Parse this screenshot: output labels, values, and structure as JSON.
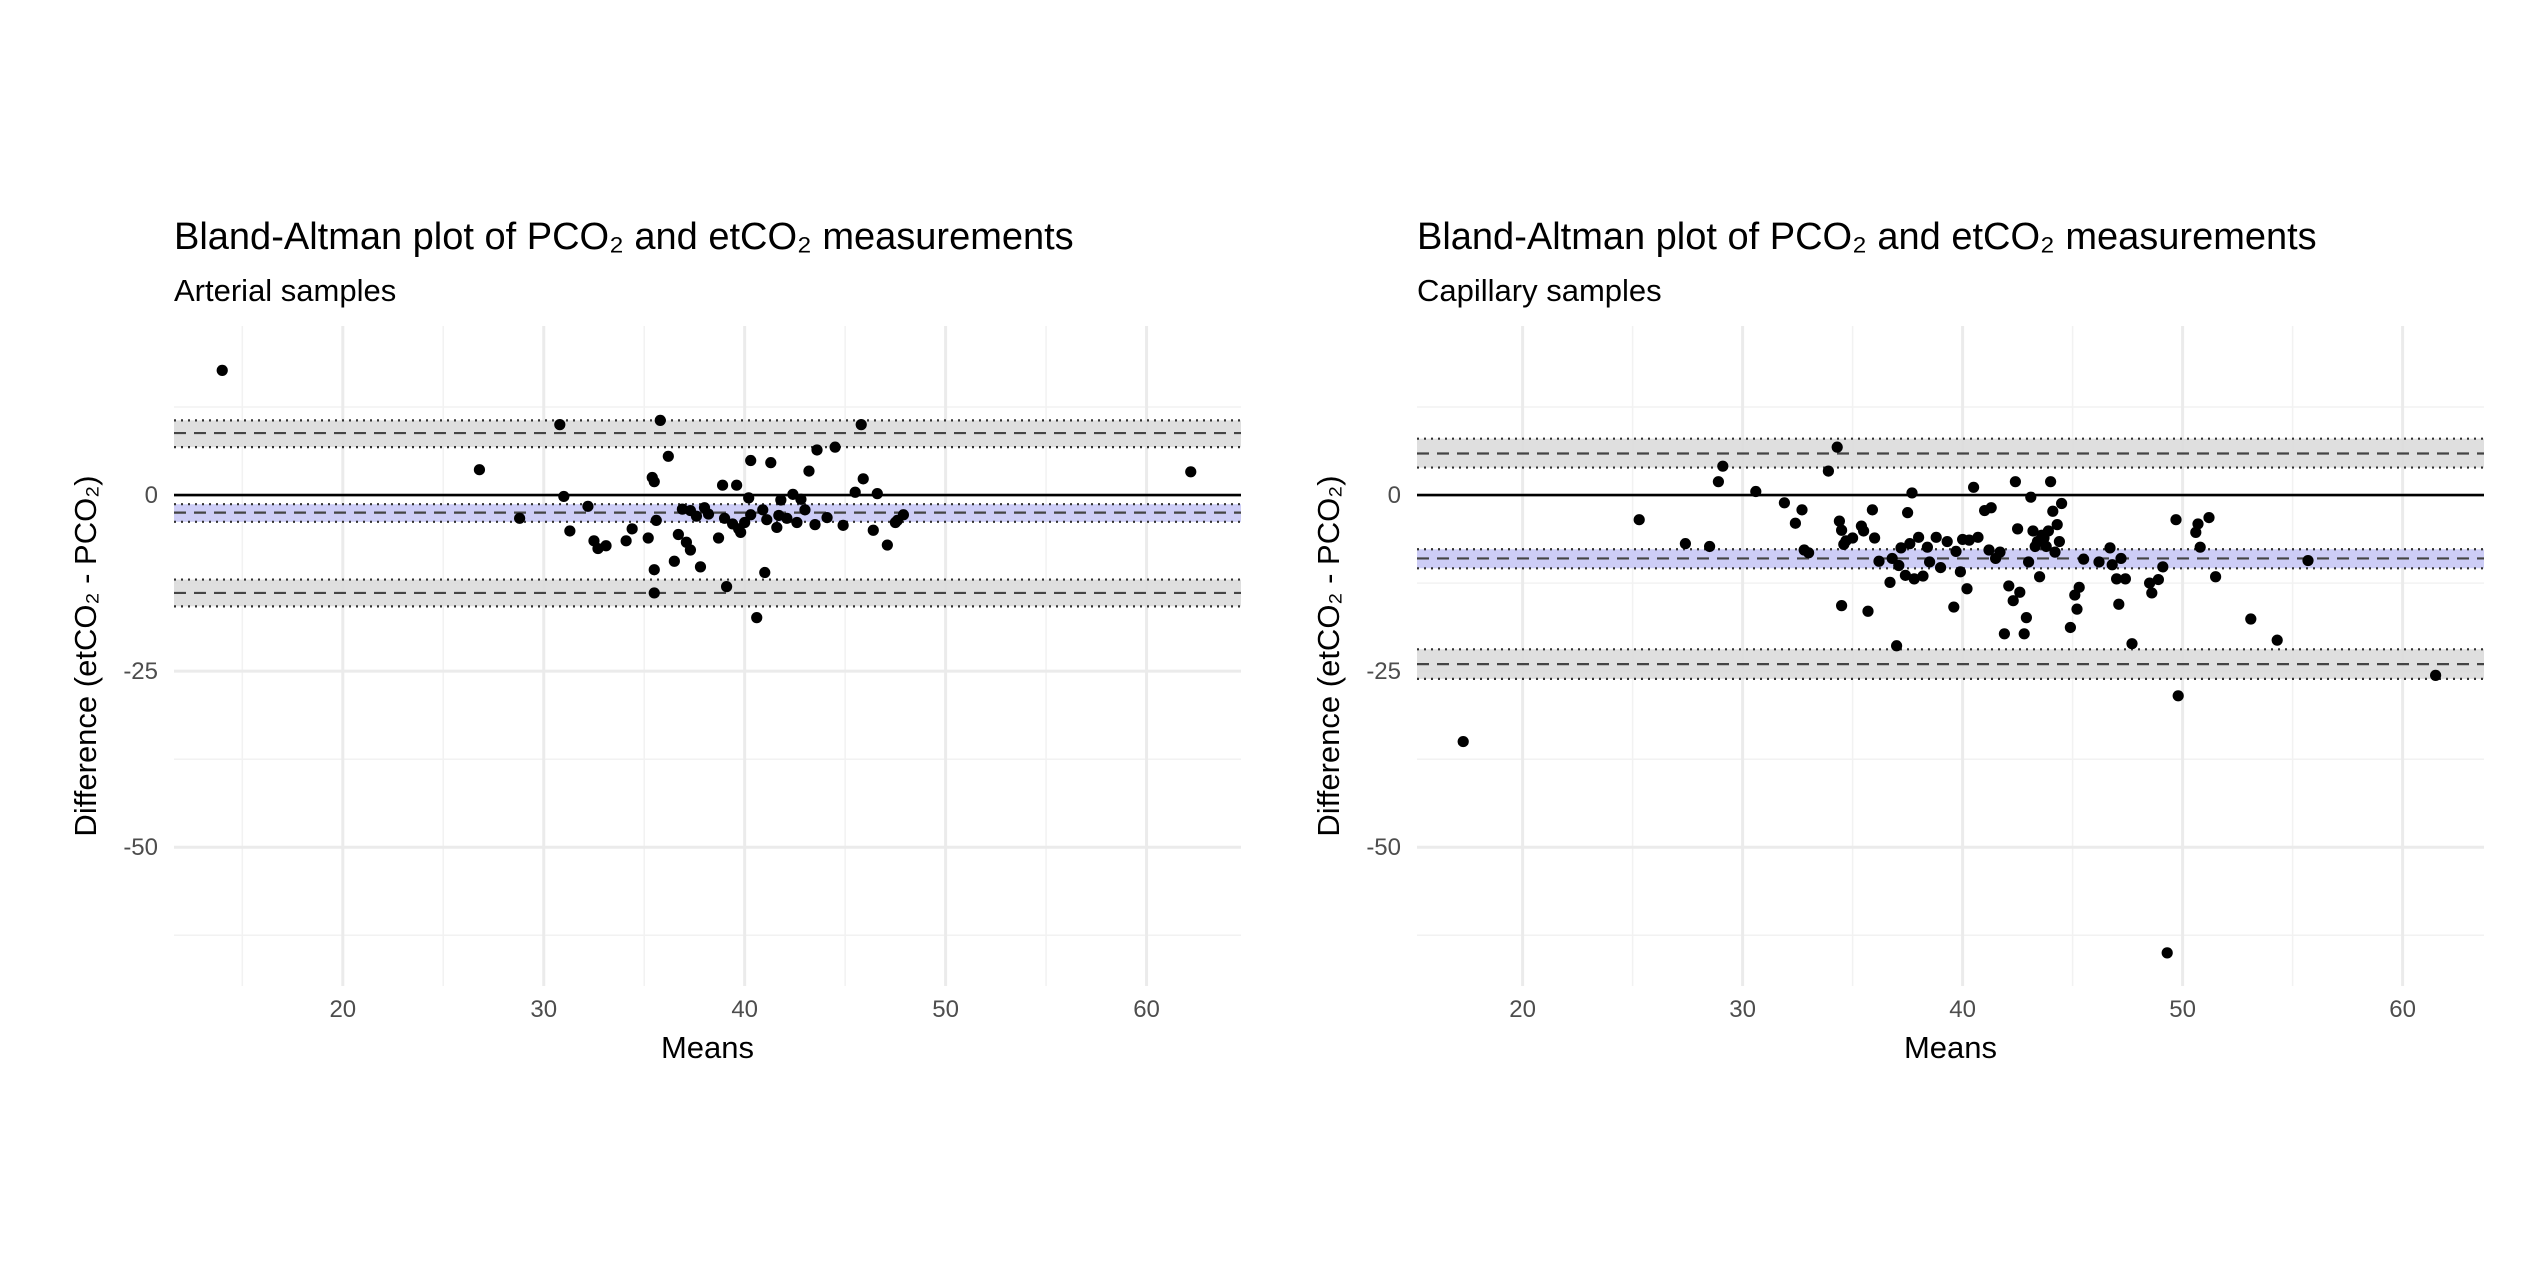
{
  "chart_data": [
    {
      "type": "scatter",
      "title": "Bland-Altman plot of PCO₂ and etCO₂ measurements",
      "subtitle": "Arterial samples",
      "xlabel": "Means",
      "ylabel": "Difference (etCO₂ - PCO₂)",
      "xlim": [
        11.6,
        64.7
      ],
      "ylim": [
        -69.7,
        24.0
      ],
      "x_ticks": [
        20,
        30,
        40,
        50,
        60
      ],
      "x_tick_labels": [
        "20",
        "30",
        "40",
        "50",
        "60"
      ],
      "y_ticks": [
        0,
        -25,
        -50
      ],
      "y_tick_labels": [
        "0",
        "-25",
        "-50"
      ],
      "grid": true,
      "reference_lines": {
        "zero": 0,
        "bias": -2.5,
        "bias_ci": [
          -3.8,
          -1.3
        ],
        "upper_loa": 8.8,
        "upper_loa_ci": [
          6.8,
          10.6
        ],
        "lower_loa": -13.9,
        "lower_loa_ci": [
          -15.8,
          -12.0
        ]
      },
      "colors": {
        "points": "#000000",
        "bias_band": "#c8c8f5",
        "loa_band": "#dcdcdc"
      },
      "points": [
        {
          "x": 14.0,
          "y": 17.7
        },
        {
          "x": 26.8,
          "y": 3.6
        },
        {
          "x": 28.8,
          "y": -3.3
        },
        {
          "x": 30.8,
          "y": 10.0
        },
        {
          "x": 31.0,
          "y": -0.2
        },
        {
          "x": 31.3,
          "y": -5.1
        },
        {
          "x": 32.2,
          "y": -1.6
        },
        {
          "x": 32.5,
          "y": -6.5
        },
        {
          "x": 32.7,
          "y": -7.6
        },
        {
          "x": 33.1,
          "y": -7.2
        },
        {
          "x": 34.1,
          "y": -6.5
        },
        {
          "x": 34.4,
          "y": -4.8
        },
        {
          "x": 35.2,
          "y": -6.1
        },
        {
          "x": 35.4,
          "y": 2.5
        },
        {
          "x": 35.5,
          "y": 1.9
        },
        {
          "x": 35.5,
          "y": -10.6
        },
        {
          "x": 35.5,
          "y": -13.9
        },
        {
          "x": 35.6,
          "y": -3.6
        },
        {
          "x": 35.8,
          "y": 10.6
        },
        {
          "x": 36.2,
          "y": 5.5
        },
        {
          "x": 36.5,
          "y": -9.4
        },
        {
          "x": 36.7,
          "y": -5.6
        },
        {
          "x": 36.9,
          "y": -2.0
        },
        {
          "x": 37.1,
          "y": -6.7
        },
        {
          "x": 37.3,
          "y": -7.8
        },
        {
          "x": 37.3,
          "y": -2.2
        },
        {
          "x": 37.6,
          "y": -3.0
        },
        {
          "x": 37.8,
          "y": -10.2
        },
        {
          "x": 38.0,
          "y": -1.8
        },
        {
          "x": 38.2,
          "y": -2.7
        },
        {
          "x": 38.7,
          "y": -6.1
        },
        {
          "x": 38.9,
          "y": 1.4
        },
        {
          "x": 39.0,
          "y": -3.3
        },
        {
          "x": 39.1,
          "y": -13.0
        },
        {
          "x": 39.4,
          "y": -4.1
        },
        {
          "x": 39.6,
          "y": 1.4
        },
        {
          "x": 39.7,
          "y": -4.8
        },
        {
          "x": 39.8,
          "y": -5.3
        },
        {
          "x": 40.0,
          "y": -3.9
        },
        {
          "x": 40.2,
          "y": -0.4
        },
        {
          "x": 40.3,
          "y": -2.8
        },
        {
          "x": 40.3,
          "y": 4.9
        },
        {
          "x": 40.6,
          "y": -17.4
        },
        {
          "x": 40.9,
          "y": -2.1
        },
        {
          "x": 41.1,
          "y": -3.5
        },
        {
          "x": 41.0,
          "y": -11.0
        },
        {
          "x": 41.3,
          "y": 4.6
        },
        {
          "x": 41.6,
          "y": -4.6
        },
        {
          "x": 41.7,
          "y": -2.9
        },
        {
          "x": 41.8,
          "y": -0.7
        },
        {
          "x": 42.1,
          "y": -3.3
        },
        {
          "x": 42.4,
          "y": 0.1
        },
        {
          "x": 42.6,
          "y": -3.9
        },
        {
          "x": 42.8,
          "y": -0.6
        },
        {
          "x": 43.0,
          "y": -2.1
        },
        {
          "x": 43.2,
          "y": 3.4
        },
        {
          "x": 43.5,
          "y": -4.2
        },
        {
          "x": 43.6,
          "y": 6.4
        },
        {
          "x": 44.1,
          "y": -3.2
        },
        {
          "x": 44.5,
          "y": 6.8
        },
        {
          "x": 44.9,
          "y": -4.3
        },
        {
          "x": 45.5,
          "y": 0.4
        },
        {
          "x": 45.8,
          "y": 10.0
        },
        {
          "x": 45.9,
          "y": 2.3
        },
        {
          "x": 46.4,
          "y": -5.0
        },
        {
          "x": 46.6,
          "y": 0.2
        },
        {
          "x": 47.1,
          "y": -7.1
        },
        {
          "x": 47.5,
          "y": -3.9
        },
        {
          "x": 47.6,
          "y": -3.6
        },
        {
          "x": 47.9,
          "y": -2.8
        },
        {
          "x": 62.2,
          "y": 3.3
        }
      ]
    },
    {
      "type": "scatter",
      "title": "Bland-Altman plot of PCO₂ and etCO₂ measurements",
      "subtitle": "Capillary samples",
      "xlabel": "Means",
      "ylabel": "Difference (etCO₂ - PCO₂)",
      "xlim": [
        15.2,
        63.7
      ],
      "ylim": [
        -69.7,
        24.0
      ],
      "x_ticks": [
        20,
        30,
        40,
        50,
        60
      ],
      "x_tick_labels": [
        "20",
        "30",
        "40",
        "50",
        "60"
      ],
      "y_ticks": [
        0,
        -25,
        -50
      ],
      "y_tick_labels": [
        "0",
        "-25",
        "-50"
      ],
      "grid": true,
      "reference_lines": {
        "zero": 0,
        "bias": -9.0,
        "bias_ci": [
          -10.4,
          -7.7
        ],
        "upper_loa": 5.9,
        "upper_loa_ci": [
          3.9,
          8.0
        ],
        "lower_loa": -24.0,
        "lower_loa_ci": [
          -26.1,
          -21.9
        ]
      },
      "colors": {
        "points": "#000000",
        "bias_band": "#c8c8f5",
        "loa_band": "#dcdcdc"
      },
      "points": [
        {
          "x": 17.3,
          "y": -35.0
        },
        {
          "x": 25.3,
          "y": -3.5
        },
        {
          "x": 27.4,
          "y": -6.9
        },
        {
          "x": 28.5,
          "y": -7.3
        },
        {
          "x": 28.9,
          "y": 1.9
        },
        {
          "x": 29.1,
          "y": 4.1
        },
        {
          "x": 30.6,
          "y": 0.5
        },
        {
          "x": 31.9,
          "y": -1.1
        },
        {
          "x": 32.4,
          "y": -4.0
        },
        {
          "x": 32.7,
          "y": -2.1
        },
        {
          "x": 32.8,
          "y": -7.8
        },
        {
          "x": 33.0,
          "y": -8.2
        },
        {
          "x": 33.9,
          "y": 3.4
        },
        {
          "x": 34.3,
          "y": 6.8
        },
        {
          "x": 34.4,
          "y": -3.7
        },
        {
          "x": 34.5,
          "y": -5.0
        },
        {
          "x": 34.5,
          "y": -15.7
        },
        {
          "x": 34.6,
          "y": -7.0
        },
        {
          "x": 34.7,
          "y": -6.5
        },
        {
          "x": 35.0,
          "y": -6.1
        },
        {
          "x": 35.4,
          "y": -4.4
        },
        {
          "x": 35.5,
          "y": -5.1
        },
        {
          "x": 35.7,
          "y": -16.5
        },
        {
          "x": 35.9,
          "y": -2.1
        },
        {
          "x": 36.0,
          "y": -6.1
        },
        {
          "x": 36.2,
          "y": -9.4
        },
        {
          "x": 36.7,
          "y": -12.4
        },
        {
          "x": 36.8,
          "y": -9.0
        },
        {
          "x": 37.0,
          "y": -21.4
        },
        {
          "x": 37.1,
          "y": -10.0
        },
        {
          "x": 37.2,
          "y": -7.5
        },
        {
          "x": 37.4,
          "y": -11.4
        },
        {
          "x": 37.5,
          "y": -2.5
        },
        {
          "x": 37.6,
          "y": -6.9
        },
        {
          "x": 37.7,
          "y": 0.3
        },
        {
          "x": 37.8,
          "y": -11.9
        },
        {
          "x": 38.0,
          "y": -6.0
        },
        {
          "x": 38.2,
          "y": -11.5
        },
        {
          "x": 38.4,
          "y": -7.4
        },
        {
          "x": 38.5,
          "y": -9.5
        },
        {
          "x": 38.8,
          "y": -6.0
        },
        {
          "x": 39.0,
          "y": -10.3
        },
        {
          "x": 39.3,
          "y": -6.6
        },
        {
          "x": 39.6,
          "y": -15.9
        },
        {
          "x": 39.7,
          "y": -8.0
        },
        {
          "x": 39.9,
          "y": -10.9
        },
        {
          "x": 40.0,
          "y": -6.3
        },
        {
          "x": 40.2,
          "y": -13.3
        },
        {
          "x": 40.3,
          "y": -6.4
        },
        {
          "x": 40.5,
          "y": 1.1
        },
        {
          "x": 40.7,
          "y": -6.0
        },
        {
          "x": 41.0,
          "y": -2.2
        },
        {
          "x": 41.2,
          "y": -7.8
        },
        {
          "x": 41.3,
          "y": -1.8
        },
        {
          "x": 41.5,
          "y": -9.0
        },
        {
          "x": 41.7,
          "y": -8.1
        },
        {
          "x": 41.9,
          "y": -19.7
        },
        {
          "x": 42.1,
          "y": -12.9
        },
        {
          "x": 42.3,
          "y": -15.0
        },
        {
          "x": 42.4,
          "y": 1.9
        },
        {
          "x": 42.5,
          "y": -4.8
        },
        {
          "x": 42.6,
          "y": -13.8
        },
        {
          "x": 42.8,
          "y": -19.7
        },
        {
          "x": 42.9,
          "y": -17.4
        },
        {
          "x": 43.0,
          "y": -9.5
        },
        {
          "x": 43.1,
          "y": -0.3
        },
        {
          "x": 43.2,
          "y": -5.1
        },
        {
          "x": 43.3,
          "y": -7.3
        },
        {
          "x": 43.4,
          "y": -6.6
        },
        {
          "x": 43.5,
          "y": -11.6
        },
        {
          "x": 43.6,
          "y": -5.7
        },
        {
          "x": 43.7,
          "y": -6.1
        },
        {
          "x": 43.8,
          "y": -7.3
        },
        {
          "x": 43.9,
          "y": -5.1
        },
        {
          "x": 44.0,
          "y": 1.9
        },
        {
          "x": 44.1,
          "y": -2.3
        },
        {
          "x": 44.2,
          "y": -8.1
        },
        {
          "x": 44.3,
          "y": -4.2
        },
        {
          "x": 44.4,
          "y": -6.6
        },
        {
          "x": 44.5,
          "y": -1.2
        },
        {
          "x": 44.9,
          "y": -18.8
        },
        {
          "x": 45.1,
          "y": -14.2
        },
        {
          "x": 45.2,
          "y": -16.2
        },
        {
          "x": 45.3,
          "y": -13.1
        },
        {
          "x": 45.5,
          "y": -9.1
        },
        {
          "x": 46.2,
          "y": -9.5
        },
        {
          "x": 46.7,
          "y": -7.5
        },
        {
          "x": 46.8,
          "y": -9.9
        },
        {
          "x": 47.0,
          "y": -11.9
        },
        {
          "x": 47.1,
          "y": -15.5
        },
        {
          "x": 47.2,
          "y": -9.0
        },
        {
          "x": 47.4,
          "y": -11.9
        },
        {
          "x": 47.7,
          "y": -21.1
        },
        {
          "x": 48.5,
          "y": -12.5
        },
        {
          "x": 48.6,
          "y": -13.9
        },
        {
          "x": 48.9,
          "y": -12.0
        },
        {
          "x": 49.1,
          "y": -10.2
        },
        {
          "x": 49.3,
          "y": -65.0
        },
        {
          "x": 49.7,
          "y": -3.5
        },
        {
          "x": 49.8,
          "y": -28.5
        },
        {
          "x": 50.6,
          "y": -5.3
        },
        {
          "x": 50.7,
          "y": -4.1
        },
        {
          "x": 50.8,
          "y": -7.4
        },
        {
          "x": 51.2,
          "y": -3.2
        },
        {
          "x": 51.5,
          "y": -11.6
        },
        {
          "x": 53.1,
          "y": -17.6
        },
        {
          "x": 54.3,
          "y": -20.6
        },
        {
          "x": 55.7,
          "y": -9.3
        },
        {
          "x": 61.5,
          "y": -25.6
        }
      ]
    }
  ]
}
